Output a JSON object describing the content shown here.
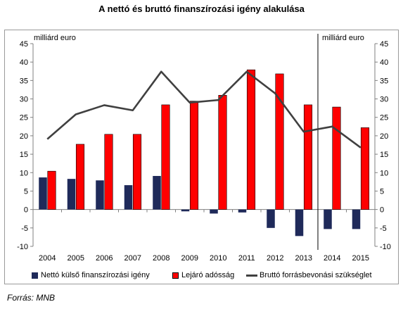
{
  "chart_data": {
    "type": "bar",
    "title": "A nettó és bruttó finanszírozási igény alakulása",
    "unit_left": "milliárd euro",
    "unit_right": "milliárd euro",
    "categories": [
      "2004",
      "2005",
      "2006",
      "2007",
      "2008",
      "2009",
      "2010",
      "2011",
      "2012",
      "2013",
      "2014",
      "2015"
    ],
    "ylim": [
      -10,
      45
    ],
    "yticks": [
      -10,
      -5,
      0,
      5,
      10,
      15,
      20,
      25,
      30,
      35,
      40,
      45
    ],
    "forecast_divider_after": "2013",
    "series": [
      {
        "name": "Nettó külső finanszírozási igény",
        "type": "bar",
        "color": "#1f2a5a",
        "values": [
          8.7,
          8.3,
          7.9,
          6.6,
          9.1,
          -0.5,
          -1.1,
          -0.8,
          -5.0,
          -7.2,
          -5.3,
          -5.3
        ]
      },
      {
        "name": "Lejáró adósság",
        "type": "bar",
        "color": "#ff0000",
        "values": [
          10.4,
          17.7,
          20.4,
          20.4,
          28.4,
          29.4,
          31.0,
          37.9,
          36.8,
          28.4,
          27.8,
          22.2
        ]
      },
      {
        "name": "Bruttó forrásbevonási szükséglet",
        "type": "line",
        "color": "#404040",
        "values": [
          19.1,
          25.8,
          28.3,
          26.9,
          37.4,
          29.0,
          29.7,
          37.4,
          31.5,
          21.1,
          22.5,
          16.8
        ]
      }
    ],
    "grid": false,
    "legend_position": "bottom"
  },
  "source": "Forrás: MNB"
}
